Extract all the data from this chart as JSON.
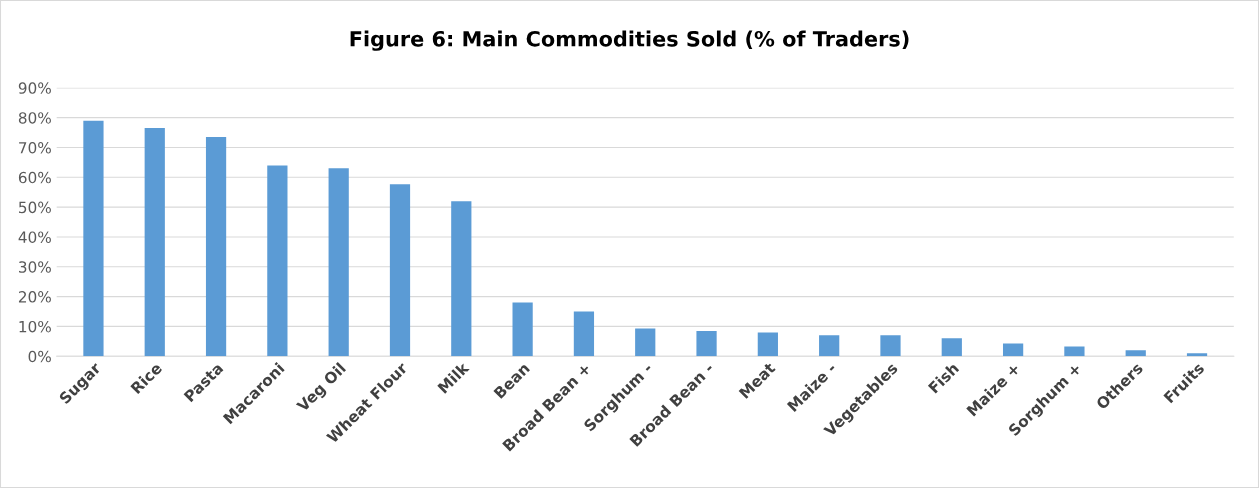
{
  "chart_data": {
    "type": "bar",
    "title": "Figure 6: Main Commodities Sold (% of Traders)",
    "categories": [
      "Sugar",
      "Rice",
      "Pasta",
      "Macaroni",
      "Veg Oil",
      "Wheat Flour",
      "Milk",
      "Bean",
      "Broad Bean +",
      "Sorghum -",
      "Broad Bean -",
      "Meat",
      "Maize -",
      "Vegetables",
      "Fish",
      "Maize +",
      "Sorghum +",
      "Others",
      "Fruits"
    ],
    "values": [
      79,
      76.5,
      73.5,
      64,
      63,
      57.7,
      52,
      18,
      15,
      9.3,
      8.5,
      8,
      7,
      7,
      6,
      4.3,
      3.3,
      2,
      1
    ],
    "color": "#5b9bd5",
    "ylim": [
      0,
      90
    ],
    "yticks": [
      {
        "value": 0,
        "label": "0%"
      },
      {
        "value": 10,
        "label": "10%"
      },
      {
        "value": 20,
        "label": "20%"
      },
      {
        "value": 30,
        "label": "30%"
      },
      {
        "value": 40,
        "label": "40%"
      },
      {
        "value": 50,
        "label": "50%"
      },
      {
        "value": 60,
        "label": "60%"
      },
      {
        "value": 70,
        "label": "70%"
      },
      {
        "value": 80,
        "label": "80%"
      },
      {
        "value": 90,
        "label": "90%"
      }
    ],
    "grid": "y"
  }
}
